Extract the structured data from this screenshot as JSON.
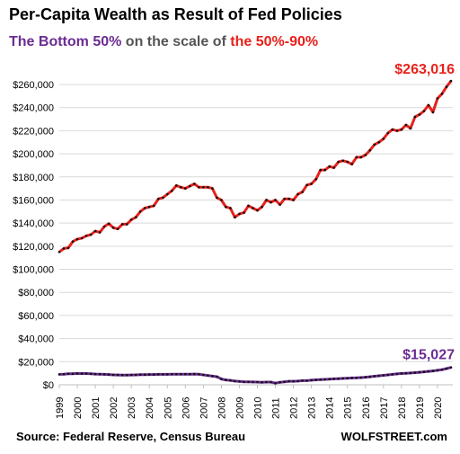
{
  "header": {
    "title": "Per-Capita Wealth as Result of Fed Policies",
    "sub_part1": "The Bottom 50%",
    "sub_part2": "on the scale of",
    "sub_part3": "the 50%-90%"
  },
  "footer": {
    "source": "Source: Federal Reserve, Census Bureau",
    "brand": "WOLFSTREET.com"
  },
  "colors": {
    "top_series": "#e8211b",
    "bottom_series": "#6b2c91",
    "dots": "#111111",
    "grid": "#d9d9d9"
  },
  "chart_data": {
    "type": "line",
    "title": "Per-Capita Wealth as Result of Fed Policies",
    "xlabel": "",
    "ylabel": "",
    "ylim": [
      0,
      260000
    ],
    "y_ticks": [
      "$0",
      "$20,000",
      "$40,000",
      "$60,000",
      "$80,000",
      "$100,000",
      "$120,000",
      "$140,000",
      "$160,000",
      "$180,000",
      "$200,000",
      "$220,000",
      "$240,000",
      "$260,000"
    ],
    "x_ticks": [
      "1999",
      "2000",
      "2001",
      "2002",
      "2003",
      "2004",
      "2005",
      "2006",
      "2007",
      "2008",
      "2009",
      "2010",
      "2011",
      "2012",
      "2013",
      "2014",
      "2015",
      "2016",
      "2017",
      "2018",
      "2019",
      "2020"
    ],
    "x_start": 1999.0,
    "x_step": 0.25,
    "grid": "horizontal",
    "series": [
      {
        "name": "the 50%-90%",
        "end_label": "$263,016",
        "values": [
          115000,
          118000,
          118500,
          124000,
          126000,
          127000,
          129000,
          130000,
          133000,
          132000,
          137000,
          139500,
          136000,
          135000,
          139000,
          139000,
          143000,
          145000,
          150000,
          153000,
          154000,
          155000,
          161000,
          162000,
          165000,
          168000,
          172500,
          171000,
          170000,
          172000,
          174000,
          171000,
          171000,
          171000,
          170000,
          162000,
          160000,
          154000,
          153000,
          145000,
          148000,
          149000,
          155000,
          153000,
          151000,
          154000,
          160000,
          158000,
          160000,
          156000,
          161000,
          161000,
          160000,
          165000,
          167000,
          173000,
          174000,
          178000,
          186000,
          186000,
          189000,
          188000,
          193000,
          194000,
          193000,
          191000,
          197000,
          197000,
          199000,
          203000,
          208000,
          210000,
          213000,
          218000,
          221000,
          220000,
          221000,
          225000,
          222000,
          232000,
          234000,
          237000,
          242000,
          236000,
          248000,
          252000,
          258000,
          263016
        ]
      },
      {
        "name": "The Bottom 50%",
        "end_label": "$15,027",
        "values": [
          9000,
          9200,
          9500,
          9600,
          9800,
          9700,
          9700,
          9500,
          9300,
          9200,
          9000,
          8900,
          8600,
          8500,
          8400,
          8400,
          8500,
          8600,
          8700,
          8800,
          8900,
          8900,
          9000,
          9000,
          9000,
          9100,
          9100,
          9200,
          9200,
          9200,
          9300,
          9100,
          8600,
          8000,
          7500,
          7000,
          5000,
          4200,
          3800,
          3200,
          2900,
          2600,
          2500,
          2400,
          2300,
          2200,
          2300,
          2300,
          1400,
          2200,
          2600,
          3000,
          3000,
          3200,
          3600,
          3600,
          4000,
          4300,
          4500,
          4700,
          4900,
          5100,
          5300,
          5500,
          5700,
          5900,
          6000,
          6200,
          6500,
          6900,
          7400,
          7800,
          8200,
          8600,
          9000,
          9400,
          9800,
          10000,
          10200,
          10500,
          10800,
          11200,
          11600,
          12000,
          12500,
          13100,
          14000,
          15027
        ]
      }
    ]
  }
}
